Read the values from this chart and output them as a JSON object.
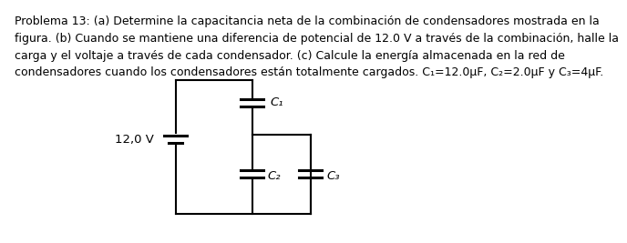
{
  "line1": "Problema 13: (a) Determine la capacitancia neta de la combinación de condensadores mostrada en la",
  "line2": "figura. (b) Cuando se mantiene una diferencia de potencial de 12.0 V a través de la combinación, halle la",
  "line3": "carga y el voltaje a través de cada condensador. (c) Calcule la energía almacenada en la red de",
  "line4": "condensadores cuando los condensadores están totalmente cargados. C₁=12.0μF, C₂=2.0μF y C₃=4μF.",
  "voltage_label": "12,0 V",
  "cap_labels": [
    "C₁",
    "C₂",
    "C₃"
  ],
  "background_color": "#ffffff",
  "text_color": "#000000",
  "line_color": "#000000",
  "font_size_text": 9.0,
  "font_size_cap": 9.5
}
